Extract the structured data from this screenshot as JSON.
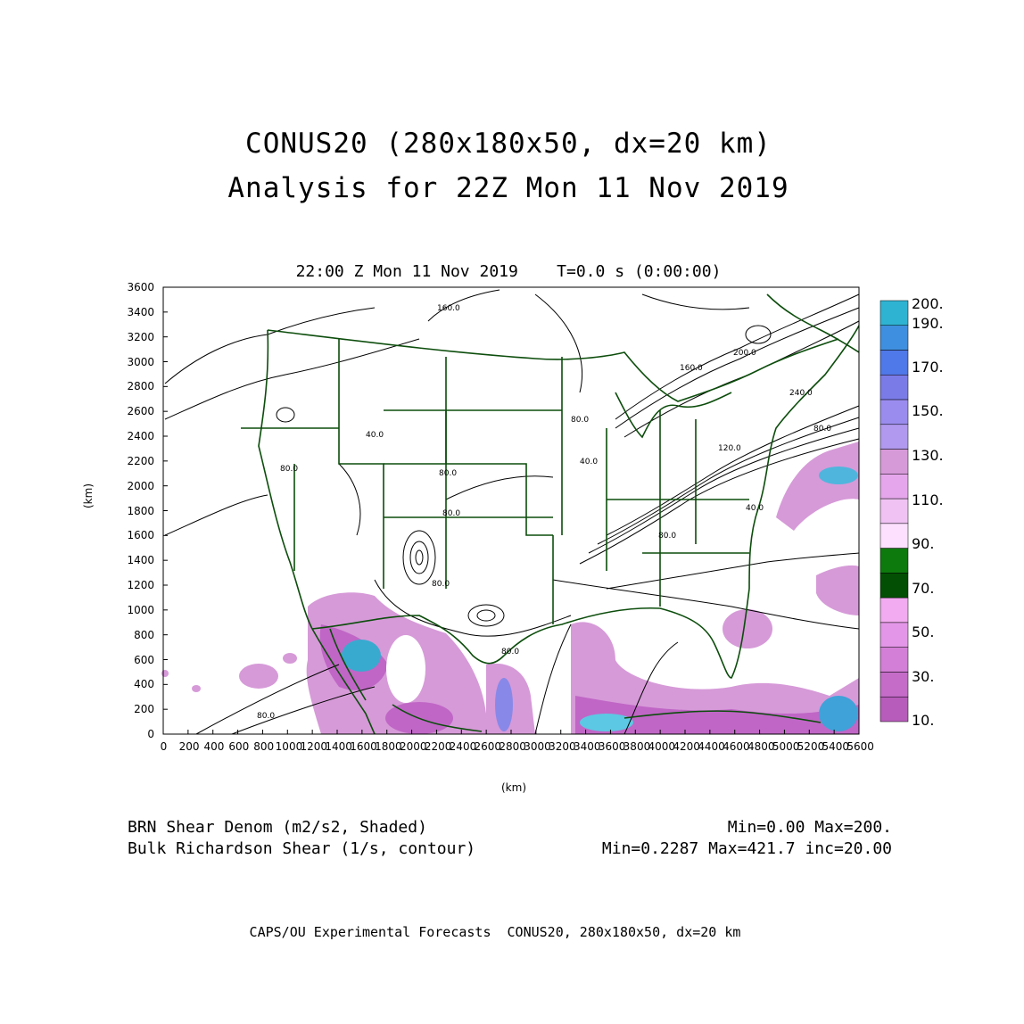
{
  "title_line1": "CONUS20 (280x180x50, dx=20 km)",
  "title_line2": "Analysis for 22Z Mon 11 Nov 2019",
  "subtitle": "22:00 Z Mon 11 Nov 2019    T=0.0 s (0:00:00)",
  "y_axis": {
    "label": "(km)",
    "ticks": [
      "0",
      "200",
      "400",
      "600",
      "800",
      "1000",
      "1200",
      "1400",
      "1600",
      "1800",
      "2000",
      "2200",
      "2400",
      "2600",
      "2800",
      "3000",
      "3200",
      "3400",
      "3600"
    ]
  },
  "x_axis": {
    "label": "(km)",
    "ticks": [
      "0",
      "200",
      "400",
      "600",
      "800",
      "1000",
      "1200",
      "1400",
      "1600",
      "1800",
      "2000",
      "2200",
      "2400",
      "2600",
      "2800",
      "3000",
      "3200",
      "3400",
      "3600",
      "3800",
      "4000",
      "4200",
      "4400",
      "4600",
      "4800",
      "5000",
      "5200",
      "5400",
      "5600"
    ]
  },
  "colorbar": {
    "labels": [
      "200.",
      "190.",
      "170.",
      "150.",
      "130.",
      "110.",
      "90.",
      "70.",
      "50.",
      "30.",
      "10."
    ],
    "colors": [
      "#2fb3d3",
      "#3f8fe0",
      "#4f78e8",
      "#7b7be8",
      "#9a8cef",
      "#b099ef",
      "#d79ad9",
      "#e6a6ec",
      "#f0c2f3",
      "#fde0fd",
      "#0d7a0d",
      "#034f03",
      "#f2aaf0",
      "#e396e7",
      "#d37ed7",
      "#c46cc8",
      "#b75cbb"
    ]
  },
  "contour_labels": [
    "160.0",
    "200.0",
    "160.0",
    "240.0",
    "80.0",
    "80.0",
    "120.0",
    "80.0",
    "40.0",
    "80.0",
    "80.0",
    "80.0",
    "80.0",
    "40.0",
    "40.0",
    "80.0",
    "80.0"
  ],
  "legend": {
    "shaded_name": "BRN Shear Denom (m2/s2, Shaded)",
    "shaded_range": "Min=0.00 Max=200.",
    "contour_name": "Bulk Richardson Shear (1/s, contour)",
    "contour_range": "Min=0.2287 Max=421.7 inc=20.00"
  },
  "footer": "CAPS/OU Experimental Forecasts  CONUS20, 280x180x50, dx=20 km"
}
